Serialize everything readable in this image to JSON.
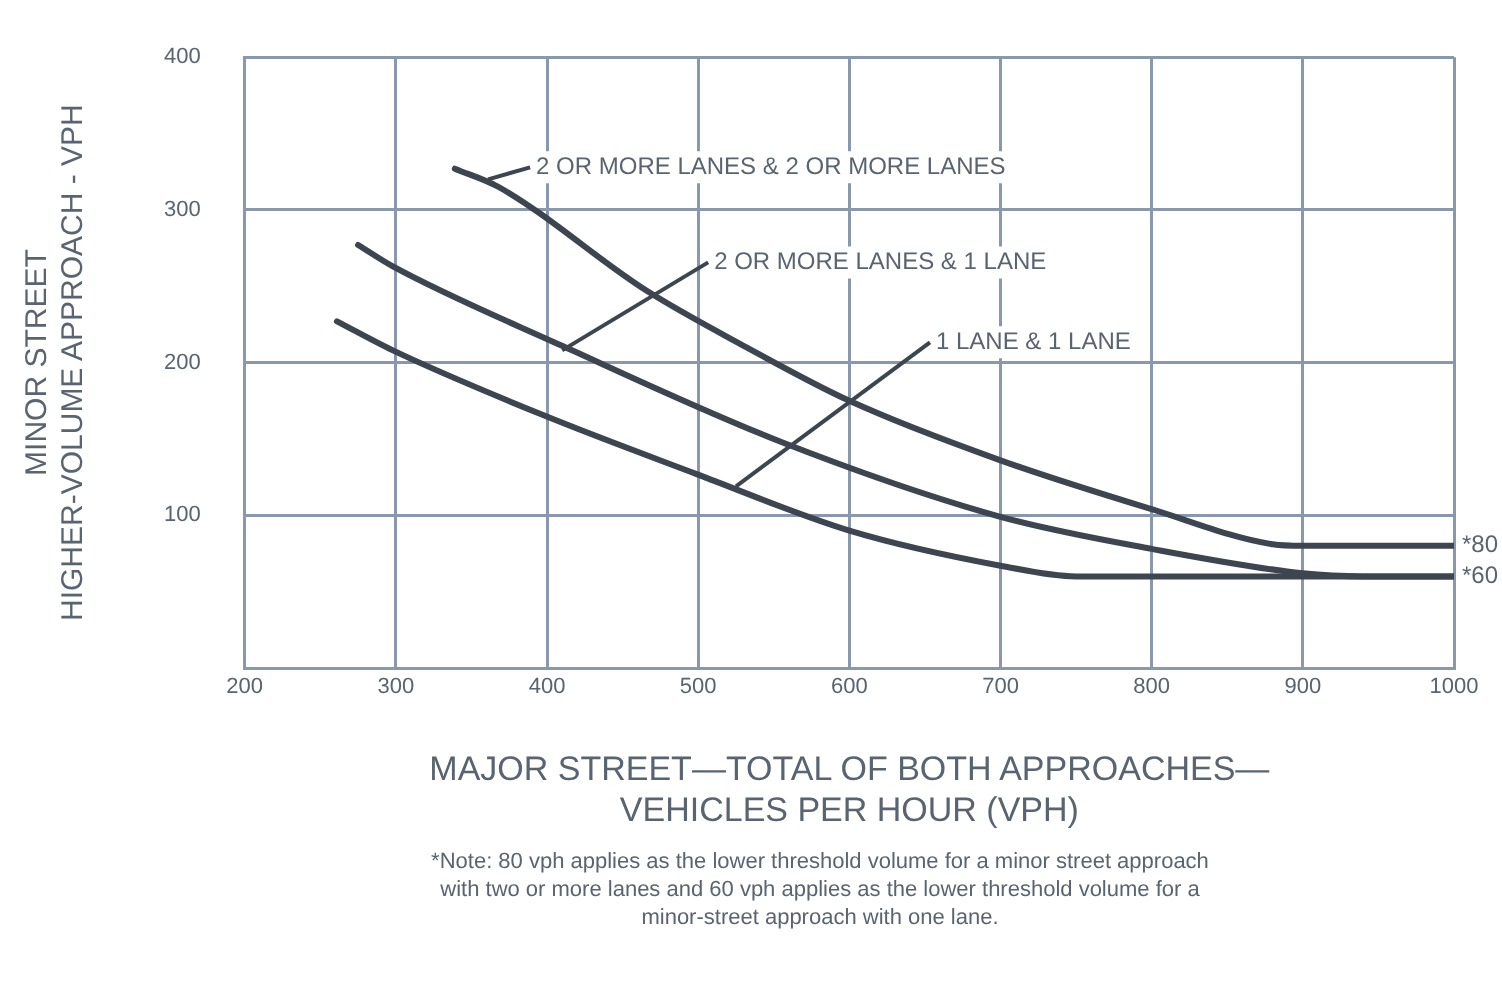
{
  "chart_data": {
    "type": "line",
    "xlabel": "MAJOR STREET—TOTAL OF BOTH APPROACHES—\nVEHICLES PER HOUR (VPH)",
    "ylabel": "MINOR STREET\nHIGHER-VOLUME APPROACH - VPH",
    "xlim": [
      200,
      1000
    ],
    "xticks": [
      200,
      300,
      400,
      500,
      600,
      700,
      800,
      900,
      1000
    ],
    "ylim": [
      0,
      400
    ],
    "yticks": [
      100,
      200,
      300,
      400
    ],
    "grid": true,
    "legend": false,
    "marker": "none",
    "line_style": "solid",
    "series": [
      {
        "color": "#3d4650",
        "x": [
          339,
          368,
          466,
          532,
          600,
          700,
          800,
          880,
          900,
          1000
        ],
        "values": [
          327,
          315,
          247,
          210,
          175,
          136,
          104,
          81,
          80,
          80
        ]
      },
      {
        "color": "#3d4650",
        "x": [
          275,
          298,
          410,
          555,
          700,
          800,
          900,
          940,
          1000
        ],
        "values": [
          277,
          263,
          211,
          148,
          99,
          78,
          62,
          60,
          60
        ]
      },
      {
        "color": "#3d4650",
        "x": [
          261,
          298,
          399,
          499,
          600,
          700,
          750,
          1000
        ],
        "values": [
          227,
          208,
          165,
          127,
          90,
          67,
          60,
          60
        ]
      }
    ],
    "annotations": [
      {
        "text": "2 OR MORE LANES & 2 OR MORE LANES",
        "x": 361,
        "y": 320
      },
      {
        "text": "2 OR MORE LANES & 1 LANE",
        "x": 410,
        "y": 208
      },
      {
        "text": "1 LANE & 1 LANE",
        "x": 525,
        "y": 119
      },
      {
        "text": "*80",
        "x": 1000,
        "y": 80
      },
      {
        "text": "*60",
        "x": 1000,
        "y": 60
      },
      "*Note: 80 vph applies as the lower threshold volume for a minor street approach with two or more lanes and 60 vph applies as the lower threshold volume for a minor-street approach with one lane."
    ]
  }
}
